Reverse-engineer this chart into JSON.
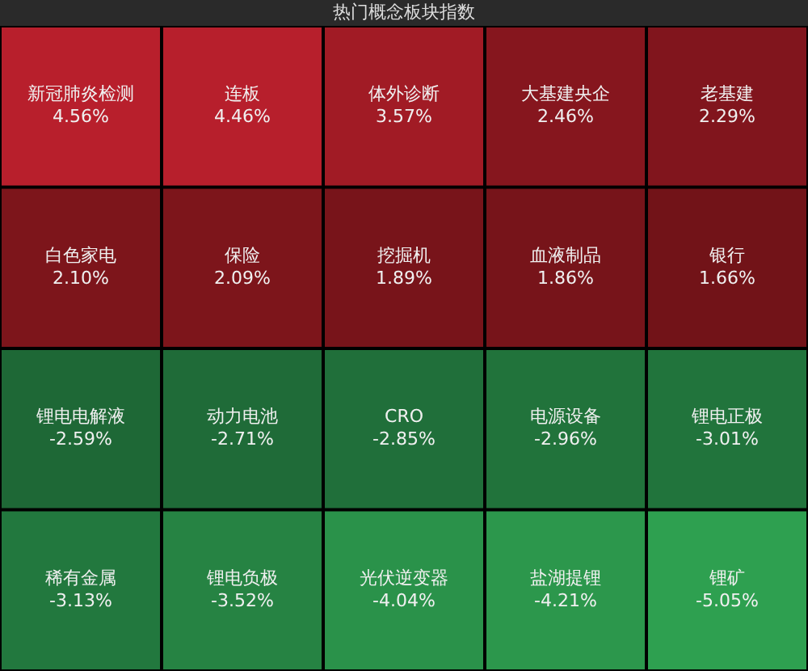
{
  "chart_data": {
    "type": "other",
    "title": "热门概念板块指数",
    "categories": [
      "新冠肺炎检测",
      "连板",
      "体外诊断",
      "大基建央企",
      "老基建",
      "白色家电",
      "保险",
      "挖掘机",
      "血液制品",
      "银行",
      "锂电电解液",
      "动力电池",
      "CRO",
      "电源设备",
      "锂电正极",
      "稀有金属",
      "锂电负极",
      "光伏逆变器",
      "盐湖提锂",
      "锂矿"
    ],
    "values": [
      4.56,
      4.46,
      3.57,
      2.46,
      2.29,
      2.1,
      2.09,
      1.89,
      1.86,
      1.66,
      -2.59,
      -2.71,
      -2.85,
      -2.96,
      -3.01,
      -3.13,
      -3.52,
      -4.04,
      -4.21,
      -5.05
    ],
    "value_labels": [
      "4.56%",
      "4.46%",
      "3.57%",
      "2.46%",
      "2.29%",
      "2.10%",
      "2.09%",
      "1.89%",
      "1.86%",
      "1.66%",
      "-2.59%",
      "-2.71%",
      "-2.85%",
      "-2.96%",
      "-3.01%",
      "-3.13%",
      "-3.52%",
      "-4.04%",
      "-4.21%",
      "-5.05%"
    ]
  }
}
